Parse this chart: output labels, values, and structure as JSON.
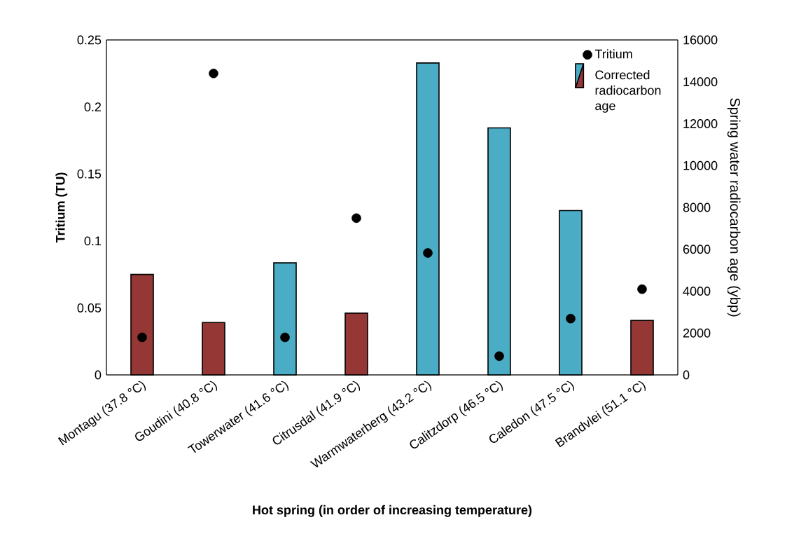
{
  "chart_data": {
    "type": "bar",
    "xlabel": "Hot spring (in order of increasing temperature)",
    "ylabel": "Tritium (TU)",
    "y2label": "Spring water radiocarbon age (ybp)",
    "categories": [
      "Montagu (37.8 °C)",
      "Goudini (40.8 °C)",
      "Towerwater (41.6 °C)",
      "Citrusdal (41.9 °C)",
      "Warmwaterberg (43.2 °C)",
      "Calitzdorp (46.5 °C)",
      "Caledon (47.5 °C)",
      "Brandvlei (51.1 °C)"
    ],
    "series": [
      {
        "name": "Tritium",
        "type": "scatter",
        "color": "#000000",
        "values": [
          0.028,
          0.225,
          0.028,
          0.117,
          0.091,
          0.014,
          0.042,
          0.064
        ]
      },
      {
        "name": "Corrected radiocarbon age",
        "axis": "y2",
        "colors": [
          "#953735",
          "#953735",
          "#4bacc6",
          "#953735",
          "#4bacc6",
          "#4bacc6",
          "#4bacc6",
          "#953735"
        ],
        "values": [
          4800,
          2500,
          5350,
          2950,
          14900,
          11800,
          7850,
          2600
        ]
      }
    ],
    "ylim": [
      0,
      0.25
    ],
    "yticks": [
      0,
      0.05,
      0.1,
      0.15,
      0.2,
      0.25
    ],
    "y2lim": [
      0,
      16000
    ],
    "y2ticks": [
      0,
      2000,
      4000,
      6000,
      8000,
      10000,
      12000,
      14000,
      16000
    ],
    "grid": false,
    "legend": "top right",
    "marker": "circle"
  }
}
